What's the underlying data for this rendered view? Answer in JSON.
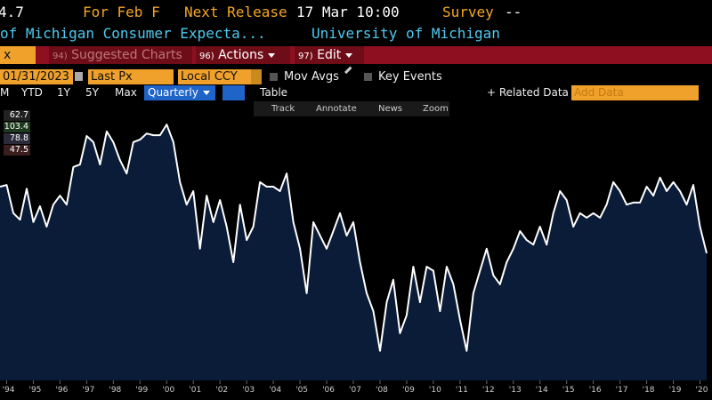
{
  "header": {
    "value": "4.7",
    "for_label": "For Feb F",
    "next_release_label": "Next Release",
    "next_release": "17 Mar 10:00",
    "survey_label": "Survey",
    "survey": "--",
    "security": "of Michigan Consumer Expecta...",
    "source": "University of Michigan"
  },
  "menu": {
    "ticker": "x",
    "suggested": {
      "num": "94)",
      "label": "Suggested Charts"
    },
    "actions": {
      "num": "96)",
      "label": "Actions"
    },
    "edit": {
      "num": "97)",
      "label": "Edit"
    }
  },
  "controls": {
    "date": "01/31/2023",
    "field": "Last Px",
    "currency": "Local CCY",
    "mov_avgs": "Mov Avgs",
    "key_events": "Key Events"
  },
  "ranges": [
    "M",
    "YTD",
    "1Y",
    "5Y",
    "Max"
  ],
  "frequency": "Quarterly",
  "table": "Table",
  "related": "+ Related Data",
  "add_data": "Add Data",
  "tools": [
    "Track",
    "Annotate",
    "News",
    "Zoom"
  ],
  "stats": [
    "62.7",
    "103.4",
    "78.8",
    "47.5"
  ],
  "chart_data": {
    "type": "area",
    "x": [
      1993.75,
      1994,
      1994.25,
      1994.5,
      1994.75,
      1995,
      1995.25,
      1995.5,
      1995.75,
      1996,
      1996.25,
      1996.5,
      1996.75,
      1997,
      1997.25,
      1997.5,
      1997.75,
      1998,
      1998.25,
      1998.5,
      1998.75,
      1999,
      1999.25,
      1999.5,
      1999.75,
      2000,
      2000.25,
      2000.5,
      2000.75,
      2001,
      2001.25,
      2001.5,
      2001.75,
      2002,
      2002.25,
      2002.5,
      2002.75,
      2003,
      2003.25,
      2003.5,
      2003.75,
      2004,
      2004.25,
      2004.5,
      2004.75,
      2005,
      2005.25,
      2005.5,
      2005.75,
      2006,
      2006.25,
      2006.5,
      2006.75,
      2007,
      2007.25,
      2007.5,
      2007.75,
      2008,
      2008.25,
      2008.5,
      2008.75,
      2009,
      2009.25,
      2009.5,
      2009.75,
      2010,
      2010.25,
      2010.5,
      2010.75,
      2011,
      2011.25,
      2011.5,
      2011.75,
      2012,
      2012.25,
      2012.5,
      2012.75,
      2013,
      2013.25,
      2013.5,
      2013.75,
      2014,
      2014.25,
      2014.5,
      2014.75,
      2015,
      2015.25,
      2015.5,
      2015.75,
      2016,
      2016.25,
      2016.5,
      2016.75,
      2017,
      2017.25,
      2017.5,
      2017.75,
      2018,
      2018.25,
      2018.5,
      2018.75,
      2019,
      2019.25,
      2019.5,
      2019.75,
      2020,
      2020.25
    ],
    "series": [
      {
        "color": "#ffffff",
        "fill": "#0b1c38",
        "values": [
          88.2,
          88.6,
          81.7,
          80.1,
          87.7,
          79.5,
          83.4,
          78.4,
          83.8,
          86.0,
          83.8,
          93.0,
          93.6,
          100.6,
          99.1,
          93.6,
          101.7,
          99.1,
          94.7,
          91.4,
          99.1,
          99.7,
          101.2,
          100.8,
          100.8,
          103.4,
          99.1,
          89.3,
          83.8,
          87.1,
          73.0,
          86.0,
          79.5,
          84.9,
          78.4,
          69.7,
          83.8,
          75.1,
          78.4,
          89.3,
          88.2,
          88.2,
          87.1,
          91.4,
          79.5,
          73.0,
          62.1,
          79.5,
          76.2,
          73.0,
          77.3,
          81.7,
          76.2,
          79.5,
          69.7,
          62.1,
          57.7,
          48.0,
          59.9,
          65.4,
          52.3,
          56.7,
          68.6,
          59.9,
          68.6,
          67.6,
          57.7,
          68.6,
          64.3,
          55.6,
          48.0,
          62.1,
          67.6,
          73.0,
          66.5,
          64.3,
          69.7,
          73.0,
          77.3,
          75.1,
          74.0,
          78.4,
          74.0,
          81.7,
          87.1,
          84.9,
          78.4,
          81.7,
          80.6,
          81.7,
          80.6,
          83.8,
          89.3,
          87.1,
          83.8,
          84.3,
          84.3,
          88.2,
          86.0,
          90.4,
          87.1,
          89.3,
          87.1,
          83.8,
          88.6,
          78.4,
          71.9
        ]
      }
    ],
    "xlim": [
      1993.75,
      2020.45
    ],
    "ylim": [
      41.4,
      105.6
    ],
    "xticks": [
      {
        "value": 1994,
        "label": "'94"
      },
      {
        "value": 1995,
        "label": "'95"
      },
      {
        "value": 1996,
        "label": "'96"
      },
      {
        "value": 1997,
        "label": "'97"
      },
      {
        "value": 1998,
        "label": "'98"
      },
      {
        "value": 1999,
        "label": "'99"
      },
      {
        "value": 2000,
        "label": "'00"
      },
      {
        "value": 2001,
        "label": "'01"
      },
      {
        "value": 2002,
        "label": "'02"
      },
      {
        "value": 2003,
        "label": "'03"
      },
      {
        "value": 2004,
        "label": "'04"
      },
      {
        "value": 2005,
        "label": "'05"
      },
      {
        "value": 2006,
        "label": "'06"
      },
      {
        "value": 2007,
        "label": "'07"
      },
      {
        "value": 2008,
        "label": "'08"
      },
      {
        "value": 2009,
        "label": "'09"
      },
      {
        "value": 2010,
        "label": "'10"
      },
      {
        "value": 2011,
        "label": "'11"
      },
      {
        "value": 2012,
        "label": "'12"
      },
      {
        "value": 2013,
        "label": "'13"
      },
      {
        "value": 2014,
        "label": "'14"
      },
      {
        "value": 2015,
        "label": "'15"
      },
      {
        "value": 2016,
        "label": "'16"
      },
      {
        "value": 2017,
        "label": "'17"
      },
      {
        "value": 2018,
        "label": "'18"
      },
      {
        "value": 2019,
        "label": "'19"
      },
      {
        "value": 2020,
        "label": "'20"
      }
    ],
    "grid": false
  }
}
